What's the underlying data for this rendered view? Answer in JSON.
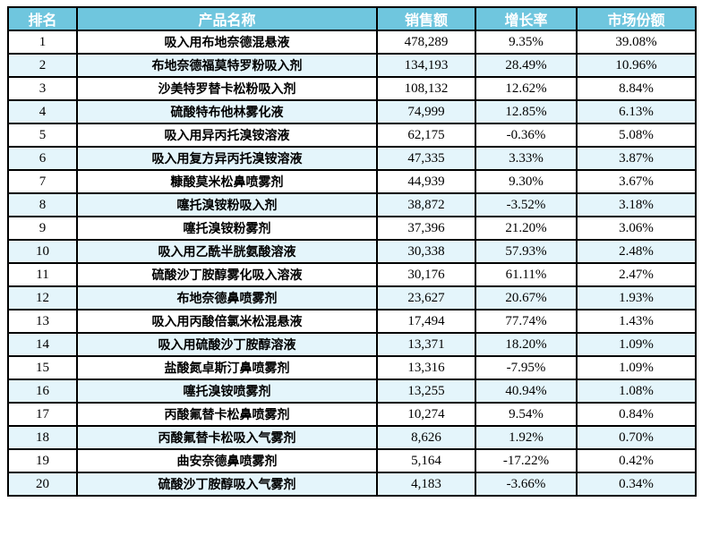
{
  "colors": {
    "header_bg": "#6FC6DE",
    "row_alt_bg": "#E4F5FB",
    "border": "#000000",
    "header_text": "#FFFFFF"
  },
  "chart_data": {
    "type": "table",
    "columns": [
      "排名",
      "产品名称",
      "销售额",
      "增长率",
      "市场份额"
    ],
    "rows": [
      [
        "1",
        "吸入用布地奈德混悬液",
        "478,289",
        "9.35%",
        "39.08%"
      ],
      [
        "2",
        "布地奈德福莫特罗粉吸入剂",
        "134,193",
        "28.49%",
        "10.96%"
      ],
      [
        "3",
        "沙美特罗替卡松粉吸入剂",
        "108,132",
        "12.62%",
        "8.84%"
      ],
      [
        "4",
        "硫酸特布他林雾化液",
        "74,999",
        "12.85%",
        "6.13%"
      ],
      [
        "5",
        "吸入用异丙托溴铵溶液",
        "62,175",
        "-0.36%",
        "5.08%"
      ],
      [
        "6",
        "吸入用复方异丙托溴铵溶液",
        "47,335",
        "3.33%",
        "3.87%"
      ],
      [
        "7",
        "糠酸莫米松鼻喷雾剂",
        "44,939",
        "9.30%",
        "3.67%"
      ],
      [
        "8",
        "噻托溴铵粉吸入剂",
        "38,872",
        "-3.52%",
        "3.18%"
      ],
      [
        "9",
        "噻托溴铵粉雾剂",
        "37,396",
        "21.20%",
        "3.06%"
      ],
      [
        "10",
        "吸入用乙酰半胱氨酸溶液",
        "30,338",
        "57.93%",
        "2.48%"
      ],
      [
        "11",
        "硫酸沙丁胺醇雾化吸入溶液",
        "30,176",
        "61.11%",
        "2.47%"
      ],
      [
        "12",
        "布地奈德鼻喷雾剂",
        "23,627",
        "20.67%",
        "1.93%"
      ],
      [
        "13",
        "吸入用丙酸倍氯米松混悬液",
        "17,494",
        "77.74%",
        "1.43%"
      ],
      [
        "14",
        "吸入用硫酸沙丁胺醇溶液",
        "13,371",
        "18.20%",
        "1.09%"
      ],
      [
        "15",
        "盐酸氮卓斯汀鼻喷雾剂",
        "13,316",
        "-7.95%",
        "1.09%"
      ],
      [
        "16",
        "噻托溴铵喷雾剂",
        "13,255",
        "40.94%",
        "1.08%"
      ],
      [
        "17",
        "丙酸氟替卡松鼻喷雾剂",
        "10,274",
        "9.54%",
        "0.84%"
      ],
      [
        "18",
        "丙酸氟替卡松吸入气雾剂",
        "8,626",
        "1.92%",
        "0.70%"
      ],
      [
        "19",
        "曲安奈德鼻喷雾剂",
        "5,164",
        "-17.22%",
        "0.42%"
      ],
      [
        "20",
        "硫酸沙丁胺醇吸入气雾剂",
        "4,183",
        "-3.66%",
        "0.34%"
      ]
    ]
  }
}
